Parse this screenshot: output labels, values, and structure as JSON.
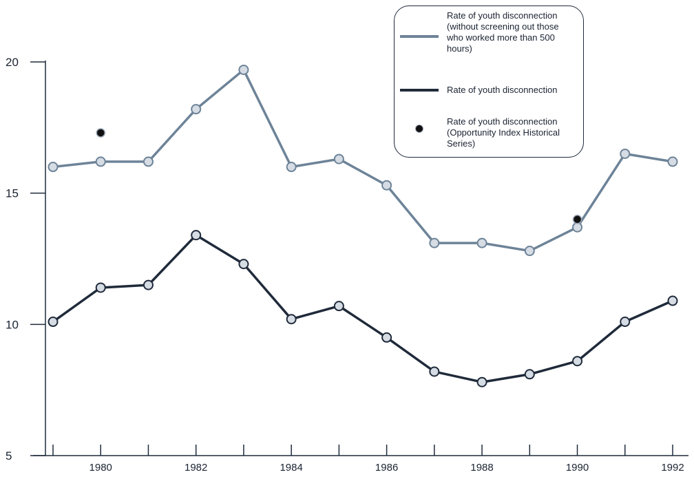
{
  "chart_data": {
    "type": "line",
    "title": "",
    "xlabel": "",
    "ylabel": "",
    "x": [
      1979,
      1980,
      1981,
      1982,
      1983,
      1984,
      1985,
      1986,
      1987,
      1988,
      1989,
      1990,
      1991,
      1992
    ],
    "x_tick_labels": [
      "1980",
      "1982",
      "1984",
      "1986",
      "1988",
      "1990",
      "1992"
    ],
    "y_tick_labels": [
      "5",
      "10",
      "15",
      "20"
    ],
    "xlim": [
      1978.5,
      1992.5
    ],
    "ylim": [
      5,
      20
    ],
    "grid": false,
    "legend_position": "top-right",
    "series": [
      {
        "name": "Rate of youth disconnection (without screening out those who worked more than 500 hours)",
        "type": "line",
        "color": "#6d8398",
        "values": [
          16.0,
          16.2,
          16.2,
          18.2,
          19.7,
          16.0,
          16.3,
          15.3,
          13.1,
          13.1,
          12.8,
          13.7,
          16.5,
          16.2
        ]
      },
      {
        "name": "Rate of youth disconnection",
        "type": "line",
        "color": "#1f2a3a",
        "values": [
          10.1,
          11.4,
          11.5,
          13.4,
          12.3,
          10.2,
          10.7,
          9.5,
          8.2,
          7.8,
          8.1,
          8.6,
          10.1,
          10.9
        ]
      },
      {
        "name": "Rate of youth disconnection (Opportunity Index Historical Series)",
        "type": "scatter",
        "color": "#111111",
        "points": [
          {
            "x": 1980,
            "y": 17.3
          },
          {
            "x": 1990,
            "y": 14.0
          }
        ]
      }
    ]
  },
  "legend": {
    "items": [
      {
        "label_lines": [
          "Rate of youth disconnection",
          "(without screening out those",
          "who worked more than 500",
          "hours)"
        ]
      },
      {
        "label_lines": [
          "Rate of youth disconnection"
        ]
      },
      {
        "label_lines": [
          "Rate of youth disconnection",
          "(Opportunity Index Historical",
          "Series)"
        ]
      }
    ]
  },
  "colors": {
    "marker_fill": "#d6dce4",
    "axis": "#1f2a3a"
  }
}
